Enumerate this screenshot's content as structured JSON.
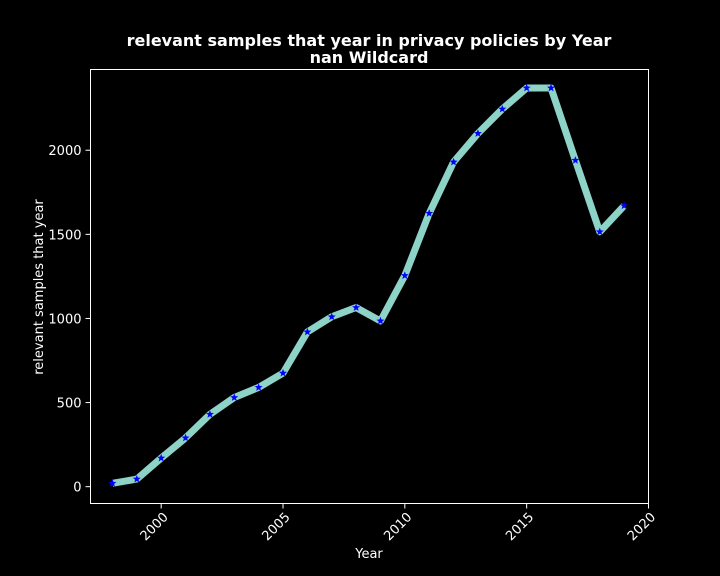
{
  "chart_data": {
    "type": "line",
    "title_line1": "relevant samples that year in privacy policies by Year",
    "title_line2": "nan Wildcard",
    "xlabel": "Year",
    "ylabel": "relevant samples that year",
    "xlim": [
      1997.1,
      2020.0
    ],
    "ylim": [
      -100,
      2480
    ],
    "xticks": [
      2000,
      2005,
      2010,
      2015,
      2020
    ],
    "yticks": [
      0,
      500,
      1000,
      1500,
      2000
    ],
    "grid": false,
    "line_color": "#8dd3c7",
    "marker_color": "#0000ff",
    "marker": "star",
    "background": "#000000",
    "text_color": "#ffffff",
    "x": [
      1998,
      1999,
      2000,
      2001,
      2002,
      2003,
      2004,
      2005,
      2006,
      2007,
      2008,
      2009,
      2010,
      2011,
      2012,
      2013,
      2014,
      2015,
      2016,
      2017,
      2018,
      2019
    ],
    "y": [
      20,
      45,
      170,
      290,
      430,
      530,
      590,
      675,
      920,
      1010,
      1065,
      985,
      1255,
      1625,
      1930,
      2100,
      2245,
      2370,
      2370,
      1940,
      1515,
      1670
    ]
  }
}
